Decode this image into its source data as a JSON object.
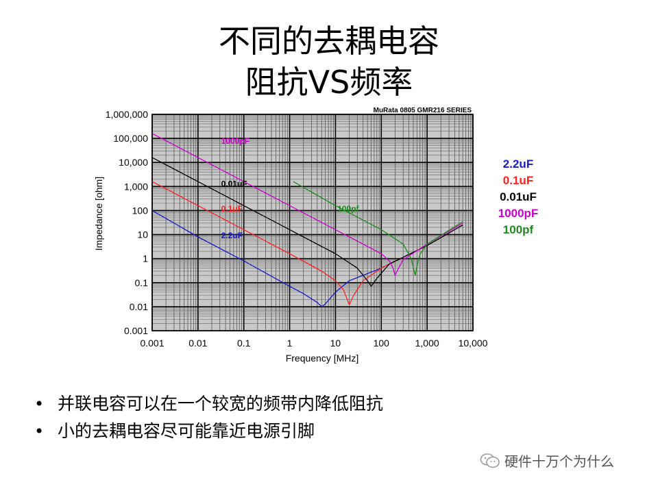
{
  "slide": {
    "title_line1": "不同的去耦电容",
    "title_line2": "阻抗VS频率",
    "bullets": [
      "并联电容可以在一个较宽的频带内降低阻抗",
      "小的去耦电容尽可能靠近电源引脚"
    ],
    "bullet_symbol": "•",
    "watermark": "硬件十万个为什么",
    "watermark_icon": "wechat-icon"
  },
  "side_legend": [
    {
      "label": "2.2uF",
      "color": "#1a1acc"
    },
    {
      "label": "0.1uF",
      "color": "#ff2020"
    },
    {
      "label": "0.01uF",
      "color": "#000000"
    },
    {
      "label": "1000pF",
      "color": "#cc00cc"
    },
    {
      "label": "100pf",
      "color": "#1a8c1a"
    }
  ],
  "chart_data": {
    "type": "line",
    "title": "MuRata 0805 GMR216 SERIES",
    "xlabel": "Frequency [MHz]",
    "ylabel": "Impedance [ohm]",
    "x_scale": "log",
    "y_scale": "log",
    "xlim": [
      0.001,
      10000
    ],
    "ylim": [
      0.001,
      1000000
    ],
    "x_ticks": [
      0.001,
      0.01,
      0.1,
      1,
      10,
      100,
      1000,
      10000
    ],
    "x_tick_labels": [
      "0.001",
      "0.01",
      "0.1",
      "1",
      "10",
      "100",
      "1,000",
      "10,000"
    ],
    "y_ticks": [
      0.001,
      0.01,
      0.1,
      1,
      10,
      100,
      1000,
      10000,
      100000,
      1000000
    ],
    "y_tick_labels": [
      "0.001",
      "0.01",
      "0.1",
      "1",
      "10",
      "100",
      "1,000",
      "10,000",
      "100,000",
      "1,000,000"
    ],
    "grid": true,
    "series": [
      {
        "name": "2.2uF",
        "color": "#1a1acc",
        "x": [
          0.001,
          0.01,
          0.1,
          1,
          2,
          4,
          5,
          6,
          10,
          20,
          100,
          1000,
          6000
        ],
        "y": [
          100,
          8,
          0.8,
          0.07,
          0.035,
          0.015,
          0.01,
          0.013,
          0.04,
          0.12,
          0.4,
          3.5,
          25
        ]
      },
      {
        "name": "0.1uF",
        "color": "#ff2020",
        "x": [
          0.001,
          0.01,
          0.1,
          1,
          5,
          10,
          15,
          20,
          25,
          40,
          100,
          1000,
          6000
        ],
        "y": [
          1600,
          160,
          16,
          1.6,
          0.3,
          0.12,
          0.05,
          0.012,
          0.03,
          0.12,
          0.4,
          3.5,
          25
        ]
      },
      {
        "name": "0.01uF",
        "color": "#000000",
        "x": [
          0.001,
          0.01,
          0.1,
          1,
          10,
          30,
          50,
          60,
          80,
          150,
          1000,
          6000
        ],
        "y": [
          16000,
          1600,
          160,
          16,
          1.6,
          0.4,
          0.12,
          0.07,
          0.15,
          0.6,
          3.5,
          25
        ]
      },
      {
        "name": "1000pF",
        "color": "#cc00cc",
        "x": [
          0.001,
          0.01,
          0.1,
          1,
          10,
          100,
          150,
          180,
          200,
          230,
          300,
          1000,
          6000
        ],
        "y": [
          160000,
          16000,
          1600,
          160,
          16,
          1.6,
          0.8,
          0.4,
          0.2,
          0.35,
          0.9,
          4,
          30
        ]
      },
      {
        "name": "100pf",
        "color": "#1a8c1a",
        "x": [
          1.2,
          10,
          100,
          300,
          450,
          550,
          600,
          700,
          1000,
          6000
        ],
        "y": [
          1600,
          160,
          16,
          4,
          1,
          0.2,
          0.5,
          1.5,
          4,
          35
        ]
      }
    ],
    "inline_labels": [
      {
        "text": "1000pF",
        "color": "#cc00cc"
      },
      {
        "text": "0.01uF",
        "color": "#000000"
      },
      {
        "text": "0.1uF",
        "color": "#ff2020"
      },
      {
        "text": "2.2uF",
        "color": "#1a1acc"
      },
      {
        "text": "100pf",
        "color": "#1a8c1a"
      }
    ]
  }
}
